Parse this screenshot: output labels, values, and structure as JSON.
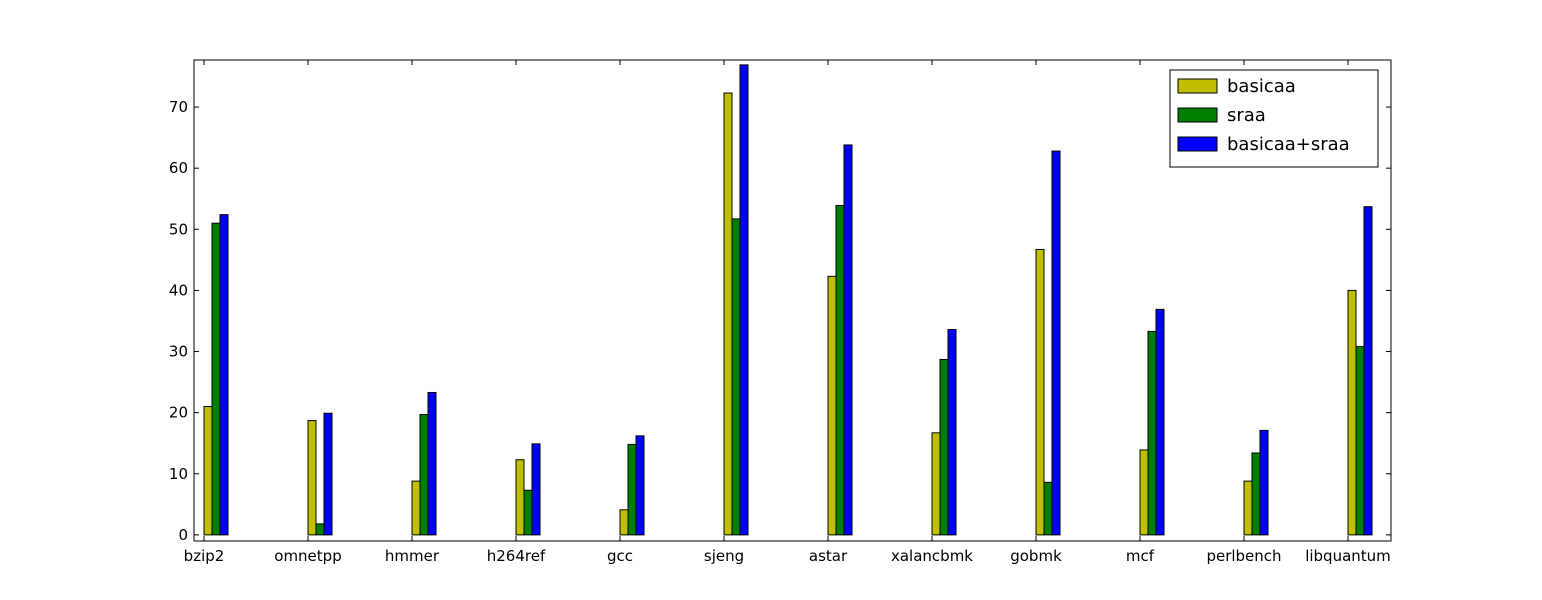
{
  "chart_data": {
    "type": "bar",
    "categories": [
      "bzip2",
      "omnetpp",
      "hmmer",
      "h264ref",
      "gcc",
      "sjeng",
      "astar",
      "xalancbmk",
      "gobmk",
      "mcf",
      "perlbench",
      "libquantum"
    ],
    "series": [
      {
        "name": "basicaa",
        "color": "#bfbf00",
        "values": [
          21.0,
          18.7,
          8.8,
          12.3,
          4.1,
          72.3,
          42.3,
          16.7,
          46.7,
          13.9,
          8.8,
          40.0
        ]
      },
      {
        "name": "sraa",
        "color": "#008000",
        "values": [
          51.0,
          1.8,
          19.7,
          7.3,
          14.8,
          51.7,
          53.9,
          28.7,
          8.6,
          33.3,
          13.4,
          30.8
        ]
      },
      {
        "name": "basicaa+sraa",
        "color": "#0000ff",
        "values": [
          52.4,
          19.9,
          23.3,
          14.9,
          16.2,
          76.9,
          63.8,
          33.6,
          62.8,
          36.9,
          17.1,
          53.7
        ]
      }
    ],
    "ylim": [
      -1,
      77.7
    ],
    "yticks": [
      0,
      10,
      20,
      30,
      40,
      50,
      60,
      70
    ],
    "title": "",
    "xlabel": "",
    "ylabel": "",
    "legend_position": "top-right",
    "grid": false
  }
}
